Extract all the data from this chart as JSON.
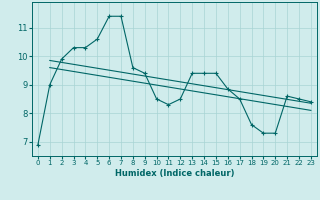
{
  "bg_color": "#d0ecec",
  "grid_color": "#a8d4d4",
  "line_color": "#006666",
  "xlabel": "Humidex (Indice chaleur)",
  "xlim": [
    -0.5,
    23.5
  ],
  "ylim": [
    6.5,
    11.9
  ],
  "xticks": [
    0,
    1,
    2,
    3,
    4,
    5,
    6,
    7,
    8,
    9,
    10,
    11,
    12,
    13,
    14,
    15,
    16,
    17,
    18,
    19,
    20,
    21,
    22,
    23
  ],
  "yticks": [
    7,
    8,
    9,
    10,
    11
  ],
  "main_x": [
    0,
    1,
    2,
    3,
    4,
    5,
    6,
    7,
    8,
    9,
    10,
    11,
    12,
    13,
    14,
    15,
    16,
    17,
    18,
    19,
    20,
    21,
    22,
    23
  ],
  "main_y": [
    6.9,
    9.0,
    9.9,
    10.3,
    10.3,
    10.6,
    11.4,
    11.4,
    9.6,
    9.4,
    8.5,
    8.3,
    8.5,
    9.4,
    9.4,
    9.4,
    8.85,
    8.5,
    7.6,
    7.3,
    7.3,
    8.6,
    8.5,
    8.4
  ],
  "trend1_x": [
    1,
    23
  ],
  "trend1_y": [
    9.85,
    8.35
  ],
  "trend2_x": [
    1,
    23
  ],
  "trend2_y": [
    9.6,
    8.1
  ]
}
